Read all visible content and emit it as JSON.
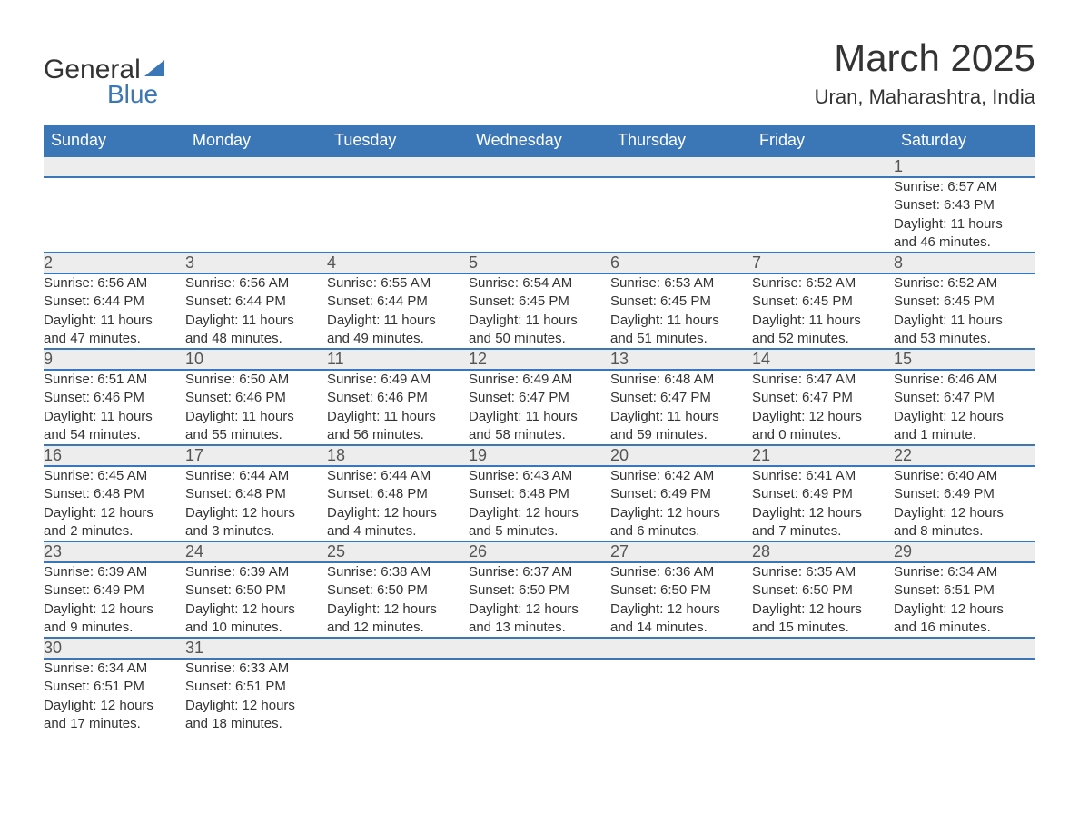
{
  "logo": {
    "word1": "General",
    "word2": "Blue"
  },
  "title": "March 2025",
  "subtitle": "Uran, Maharashtra, India",
  "colors": {
    "header_bg": "#3b77b7",
    "header_text": "#ffffff",
    "daynum_bg": "#ededed",
    "body_text": "#333333",
    "accent": "#3b77b7"
  },
  "day_headers": [
    "Sunday",
    "Monday",
    "Tuesday",
    "Wednesday",
    "Thursday",
    "Friday",
    "Saturday"
  ],
  "weeks": [
    [
      null,
      null,
      null,
      null,
      null,
      null,
      {
        "n": "1",
        "sunrise": "Sunrise: 6:57 AM",
        "sunset": "Sunset: 6:43 PM",
        "day1": "Daylight: 11 hours",
        "day2": "and 46 minutes."
      }
    ],
    [
      {
        "n": "2",
        "sunrise": "Sunrise: 6:56 AM",
        "sunset": "Sunset: 6:44 PM",
        "day1": "Daylight: 11 hours",
        "day2": "and 47 minutes."
      },
      {
        "n": "3",
        "sunrise": "Sunrise: 6:56 AM",
        "sunset": "Sunset: 6:44 PM",
        "day1": "Daylight: 11 hours",
        "day2": "and 48 minutes."
      },
      {
        "n": "4",
        "sunrise": "Sunrise: 6:55 AM",
        "sunset": "Sunset: 6:44 PM",
        "day1": "Daylight: 11 hours",
        "day2": "and 49 minutes."
      },
      {
        "n": "5",
        "sunrise": "Sunrise: 6:54 AM",
        "sunset": "Sunset: 6:45 PM",
        "day1": "Daylight: 11 hours",
        "day2": "and 50 minutes."
      },
      {
        "n": "6",
        "sunrise": "Sunrise: 6:53 AM",
        "sunset": "Sunset: 6:45 PM",
        "day1": "Daylight: 11 hours",
        "day2": "and 51 minutes."
      },
      {
        "n": "7",
        "sunrise": "Sunrise: 6:52 AM",
        "sunset": "Sunset: 6:45 PM",
        "day1": "Daylight: 11 hours",
        "day2": "and 52 minutes."
      },
      {
        "n": "8",
        "sunrise": "Sunrise: 6:52 AM",
        "sunset": "Sunset: 6:45 PM",
        "day1": "Daylight: 11 hours",
        "day2": "and 53 minutes."
      }
    ],
    [
      {
        "n": "9",
        "sunrise": "Sunrise: 6:51 AM",
        "sunset": "Sunset: 6:46 PM",
        "day1": "Daylight: 11 hours",
        "day2": "and 54 minutes."
      },
      {
        "n": "10",
        "sunrise": "Sunrise: 6:50 AM",
        "sunset": "Sunset: 6:46 PM",
        "day1": "Daylight: 11 hours",
        "day2": "and 55 minutes."
      },
      {
        "n": "11",
        "sunrise": "Sunrise: 6:49 AM",
        "sunset": "Sunset: 6:46 PM",
        "day1": "Daylight: 11 hours",
        "day2": "and 56 minutes."
      },
      {
        "n": "12",
        "sunrise": "Sunrise: 6:49 AM",
        "sunset": "Sunset: 6:47 PM",
        "day1": "Daylight: 11 hours",
        "day2": "and 58 minutes."
      },
      {
        "n": "13",
        "sunrise": "Sunrise: 6:48 AM",
        "sunset": "Sunset: 6:47 PM",
        "day1": "Daylight: 11 hours",
        "day2": "and 59 minutes."
      },
      {
        "n": "14",
        "sunrise": "Sunrise: 6:47 AM",
        "sunset": "Sunset: 6:47 PM",
        "day1": "Daylight: 12 hours",
        "day2": "and 0 minutes."
      },
      {
        "n": "15",
        "sunrise": "Sunrise: 6:46 AM",
        "sunset": "Sunset: 6:47 PM",
        "day1": "Daylight: 12 hours",
        "day2": "and 1 minute."
      }
    ],
    [
      {
        "n": "16",
        "sunrise": "Sunrise: 6:45 AM",
        "sunset": "Sunset: 6:48 PM",
        "day1": "Daylight: 12 hours",
        "day2": "and 2 minutes."
      },
      {
        "n": "17",
        "sunrise": "Sunrise: 6:44 AM",
        "sunset": "Sunset: 6:48 PM",
        "day1": "Daylight: 12 hours",
        "day2": "and 3 minutes."
      },
      {
        "n": "18",
        "sunrise": "Sunrise: 6:44 AM",
        "sunset": "Sunset: 6:48 PM",
        "day1": "Daylight: 12 hours",
        "day2": "and 4 minutes."
      },
      {
        "n": "19",
        "sunrise": "Sunrise: 6:43 AM",
        "sunset": "Sunset: 6:48 PM",
        "day1": "Daylight: 12 hours",
        "day2": "and 5 minutes."
      },
      {
        "n": "20",
        "sunrise": "Sunrise: 6:42 AM",
        "sunset": "Sunset: 6:49 PM",
        "day1": "Daylight: 12 hours",
        "day2": "and 6 minutes."
      },
      {
        "n": "21",
        "sunrise": "Sunrise: 6:41 AM",
        "sunset": "Sunset: 6:49 PM",
        "day1": "Daylight: 12 hours",
        "day2": "and 7 minutes."
      },
      {
        "n": "22",
        "sunrise": "Sunrise: 6:40 AM",
        "sunset": "Sunset: 6:49 PM",
        "day1": "Daylight: 12 hours",
        "day2": "and 8 minutes."
      }
    ],
    [
      {
        "n": "23",
        "sunrise": "Sunrise: 6:39 AM",
        "sunset": "Sunset: 6:49 PM",
        "day1": "Daylight: 12 hours",
        "day2": "and 9 minutes."
      },
      {
        "n": "24",
        "sunrise": "Sunrise: 6:39 AM",
        "sunset": "Sunset: 6:50 PM",
        "day1": "Daylight: 12 hours",
        "day2": "and 10 minutes."
      },
      {
        "n": "25",
        "sunrise": "Sunrise: 6:38 AM",
        "sunset": "Sunset: 6:50 PM",
        "day1": "Daylight: 12 hours",
        "day2": "and 12 minutes."
      },
      {
        "n": "26",
        "sunrise": "Sunrise: 6:37 AM",
        "sunset": "Sunset: 6:50 PM",
        "day1": "Daylight: 12 hours",
        "day2": "and 13 minutes."
      },
      {
        "n": "27",
        "sunrise": "Sunrise: 6:36 AM",
        "sunset": "Sunset: 6:50 PM",
        "day1": "Daylight: 12 hours",
        "day2": "and 14 minutes."
      },
      {
        "n": "28",
        "sunrise": "Sunrise: 6:35 AM",
        "sunset": "Sunset: 6:50 PM",
        "day1": "Daylight: 12 hours",
        "day2": "and 15 minutes."
      },
      {
        "n": "29",
        "sunrise": "Sunrise: 6:34 AM",
        "sunset": "Sunset: 6:51 PM",
        "day1": "Daylight: 12 hours",
        "day2": "and 16 minutes."
      }
    ],
    [
      {
        "n": "30",
        "sunrise": "Sunrise: 6:34 AM",
        "sunset": "Sunset: 6:51 PM",
        "day1": "Daylight: 12 hours",
        "day2": "and 17 minutes."
      },
      {
        "n": "31",
        "sunrise": "Sunrise: 6:33 AM",
        "sunset": "Sunset: 6:51 PM",
        "day1": "Daylight: 12 hours",
        "day2": "and 18 minutes."
      },
      null,
      null,
      null,
      null,
      null
    ]
  ]
}
